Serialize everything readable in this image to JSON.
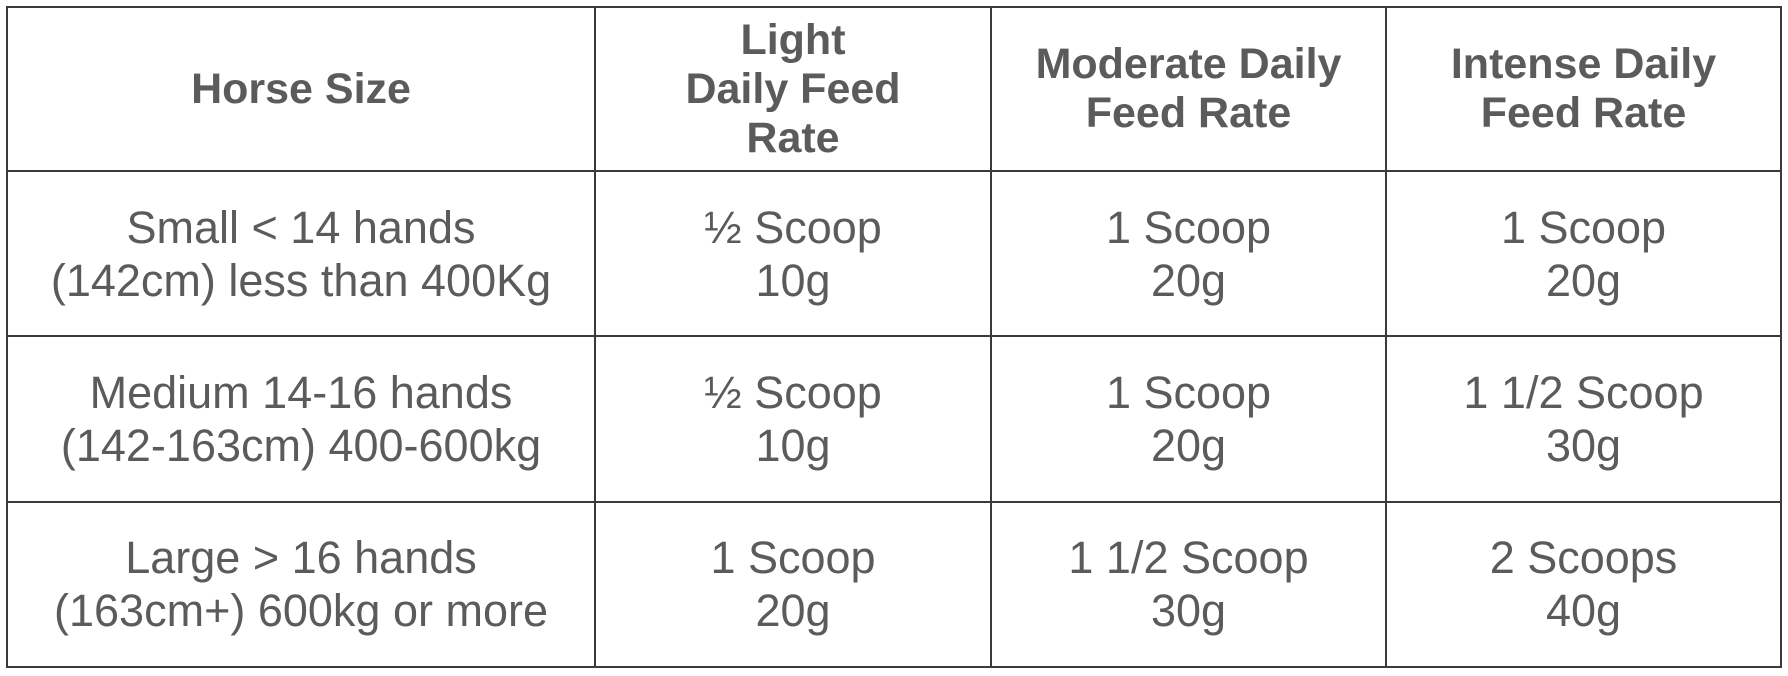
{
  "table": {
    "headers": [
      "Horse Size",
      "Light\nDaily Feed\nRate",
      "Moderate Daily\nFeed Rate",
      "Intense Daily\nFeed Rate"
    ],
    "rows": [
      [
        "Small < 14 hands\n(142cm) less than 400Kg",
        "½ Scoop\n10g",
        "1 Scoop\n20g",
        "1 Scoop\n20g"
      ],
      [
        "Medium 14-16 hands\n(142-163cm) 400-600kg",
        "½ Scoop\n10g",
        "1 Scoop\n20g",
        "1 1/2 Scoop\n30g"
      ],
      [
        "Large > 16 hands\n(163cm+) 600kg or more",
        "1 Scoop\n20g",
        "1 1/2 Scoop\n30g",
        "2 Scoops\n40g"
      ]
    ]
  }
}
